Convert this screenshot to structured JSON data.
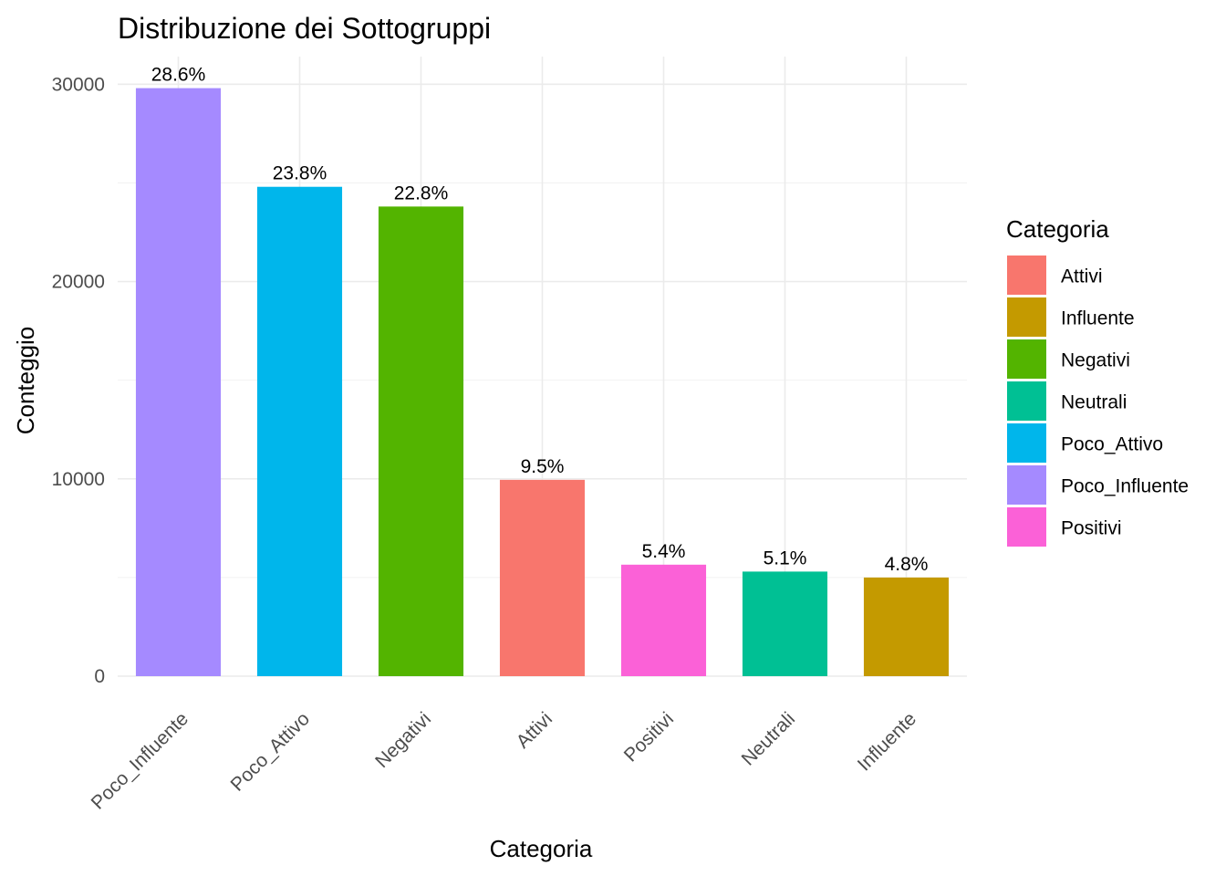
{
  "chart_data": {
    "type": "bar",
    "title": "Distribuzione dei Sottogruppi",
    "xlabel": "Categoria",
    "ylabel": "Conteggio",
    "categories": [
      "Poco_Influente",
      "Poco_Attivo",
      "Negativi",
      "Attivi",
      "Positivi",
      "Neutrali",
      "Influente"
    ],
    "values": [
      29800,
      24800,
      23800,
      9950,
      5650,
      5300,
      5000
    ],
    "labels": [
      "28.6%",
      "23.8%",
      "22.8%",
      "9.5%",
      "5.4%",
      "5.1%",
      "4.8%"
    ],
    "colors": [
      "#A58AFF",
      "#00B6EB",
      "#53B400",
      "#F8766D",
      "#FB61D7",
      "#00C094",
      "#C49A00"
    ],
    "ylim": [
      0,
      31400
    ],
    "yticks": [
      0,
      10000,
      20000,
      30000
    ],
    "ytick_labels": [
      "0",
      "10000",
      "20000",
      "30000"
    ],
    "grid": true,
    "legend": {
      "title": "Categoria",
      "position": "right",
      "items": [
        {
          "label": "Attivi",
          "color": "#F8766D"
        },
        {
          "label": "Influente",
          "color": "#C49A00"
        },
        {
          "label": "Negativi",
          "color": "#53B400"
        },
        {
          "label": "Neutrali",
          "color": "#00C094"
        },
        {
          "label": "Poco_Attivo",
          "color": "#00B6EB"
        },
        {
          "label": "Poco_Influente",
          "color": "#A58AFF"
        },
        {
          "label": "Positivi",
          "color": "#FB61D7"
        }
      ]
    }
  }
}
